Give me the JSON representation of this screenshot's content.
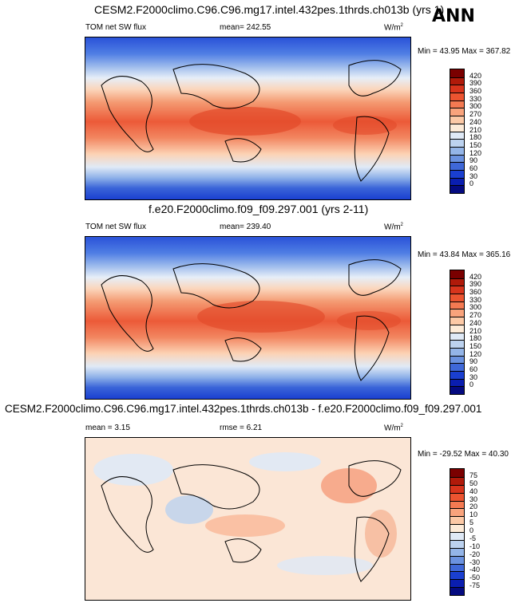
{
  "season": "ANN",
  "panels": [
    {
      "title": "CESM2.F2000climo.C96.C96.mg17.intel.432pes.1thrds.ch013b (yrs 1)",
      "left": "TOM net SW flux",
      "mean": "mean= 242.55",
      "units": "W/m",
      "units_sup": "2",
      "minmax": "Min =  43.95 Max = 367.82",
      "type": "abs"
    },
    {
      "title": "f.e20.F2000climo.f09_f09.297.001 (yrs 2-11)",
      "left": "TOM net SW flux",
      "mean": "mean= 239.40",
      "units": "W/m",
      "units_sup": "2",
      "minmax": "Min =  43.84 Max = 365.16",
      "type": "abs"
    },
    {
      "title": "CESM2.F2000climo.C96.C96.mg17.intel.432pes.1thrds.ch013b - f.e20.F2000climo.f09_f09.297.001",
      "left": "mean =   3.15",
      "mean": "rmse =   6.21",
      "units": "W/m",
      "units_sup": "2",
      "minmax": "Min = -29.52 Max =  40.30",
      "type": "diff"
    }
  ],
  "colorbar_abs": {
    "labels": [
      "420",
      "390",
      "360",
      "330",
      "300",
      "270",
      "240",
      "210",
      "180",
      "150",
      "120",
      "90",
      "60",
      "30",
      "0"
    ],
    "colors": [
      "#7a0000",
      "#b01a0a",
      "#d8341c",
      "#ec5430",
      "#f47a52",
      "#f9a37c",
      "#fcc9a6",
      "#fdebd8",
      "#dfe9f6",
      "#bcd2ef",
      "#94b5e8",
      "#6b92e0",
      "#3f68d8",
      "#1a3fd0",
      "#0a1eb0",
      "#040a80"
    ]
  },
  "colorbar_diff": {
    "labels": [
      "75",
      "50",
      "40",
      "30",
      "20",
      "10",
      "5",
      "0",
      "-5",
      "-10",
      "-20",
      "-30",
      "-40",
      "-50",
      "-75"
    ],
    "colors": [
      "#7a0000",
      "#b01a0a",
      "#d8341c",
      "#ec5430",
      "#f47a52",
      "#f9a37c",
      "#fcc9a6",
      "#fdebd8",
      "#dfe9f6",
      "#bcd2ef",
      "#94b5e8",
      "#6b92e0",
      "#3f68d8",
      "#1a3fd0",
      "#0a1eb0",
      "#040a80"
    ]
  }
}
